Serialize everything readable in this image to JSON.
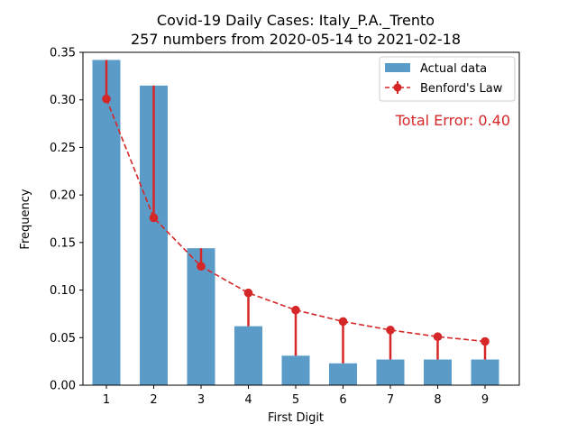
{
  "chart_data": {
    "type": "bar",
    "title": "Covid-19 Daily Cases: Italy_P.A._Trento",
    "subtitle": "257 numbers from 2020-05-14 to 2021-02-18",
    "xlabel": "First Digit",
    "ylabel": "Frequency",
    "categories": [
      "1",
      "2",
      "3",
      "4",
      "5",
      "6",
      "7",
      "8",
      "9"
    ],
    "ylim": [
      0,
      0.35
    ],
    "yticks": [
      "0.00",
      "0.05",
      "0.10",
      "0.15",
      "0.20",
      "0.25",
      "0.30",
      "0.35"
    ],
    "series": [
      {
        "name": "Actual data",
        "type": "bar",
        "color": "#5b9bc8",
        "values": [
          0.342,
          0.315,
          0.144,
          0.062,
          0.031,
          0.023,
          0.027,
          0.027,
          0.027
        ]
      },
      {
        "name": "Benford's Law",
        "type": "line",
        "style": "dashed",
        "color": "#d62728",
        "values": [
          0.301,
          0.176,
          0.125,
          0.097,
          0.079,
          0.067,
          0.058,
          0.051,
          0.046
        ]
      }
    ],
    "annotation": "Total Error: 0.40",
    "annotation_color": "#d62728",
    "legend_position": "top-right",
    "grid": false
  }
}
